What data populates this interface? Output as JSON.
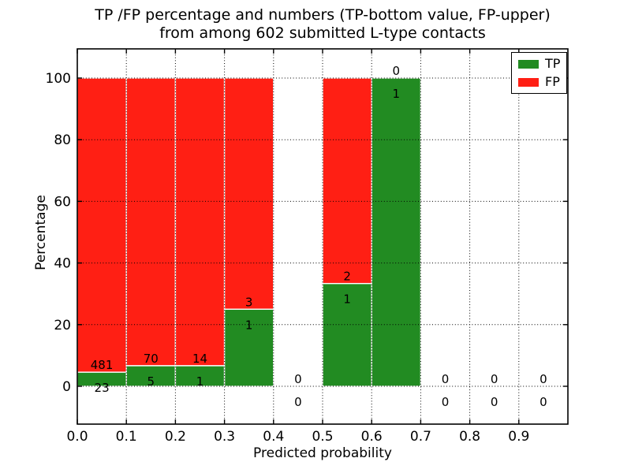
{
  "chart_data": {
    "type": "bar",
    "stacked": true,
    "unit": "percent",
    "title_line1": "TP /FP percentage and numbers (TP-bottom value, FP-upper)",
    "title_line2": "from among 602 submitted L-type contacts",
    "xlabel": "Predicted probability",
    "ylabel": "Percentage",
    "x_ticks": [
      "0.0",
      "0.1",
      "0.2",
      "0.3",
      "0.4",
      "0.5",
      "0.6",
      "0.7",
      "0.8",
      "0.9"
    ],
    "y_ticks": [
      0,
      20,
      40,
      60,
      80,
      100
    ],
    "xlim": [
      0.0,
      1.0
    ],
    "ylim": [
      -12,
      110
    ],
    "grid": "dotted",
    "bins": [
      {
        "range": [
          0.0,
          0.1
        ],
        "tp": 23,
        "fp": 481
      },
      {
        "range": [
          0.1,
          0.2
        ],
        "tp": 5,
        "fp": 70
      },
      {
        "range": [
          0.2,
          0.3
        ],
        "tp": 1,
        "fp": 14
      },
      {
        "range": [
          0.3,
          0.4
        ],
        "tp": 1,
        "fp": 3
      },
      {
        "range": [
          0.4,
          0.5
        ],
        "tp": 0,
        "fp": 0
      },
      {
        "range": [
          0.5,
          0.6
        ],
        "tp": 1,
        "fp": 2
      },
      {
        "range": [
          0.6,
          0.7
        ],
        "tp": 1,
        "fp": 0
      },
      {
        "range": [
          0.7,
          0.8
        ],
        "tp": 0,
        "fp": 0
      },
      {
        "range": [
          0.8,
          0.9
        ],
        "tp": 0,
        "fp": 0
      },
      {
        "range": [
          0.9,
          1.0
        ],
        "tp": 0,
        "fp": 0
      }
    ],
    "legend": {
      "position": "upper right",
      "entries": [
        {
          "label": "TP",
          "color": "#228B22"
        },
        {
          "label": "FP",
          "color": "#FF1F14"
        }
      ]
    },
    "colors": {
      "tp": "#228B22",
      "fp": "#FF1F14",
      "grid": "#000000",
      "frame": "#000000",
      "background": "#FFFFFF"
    }
  }
}
